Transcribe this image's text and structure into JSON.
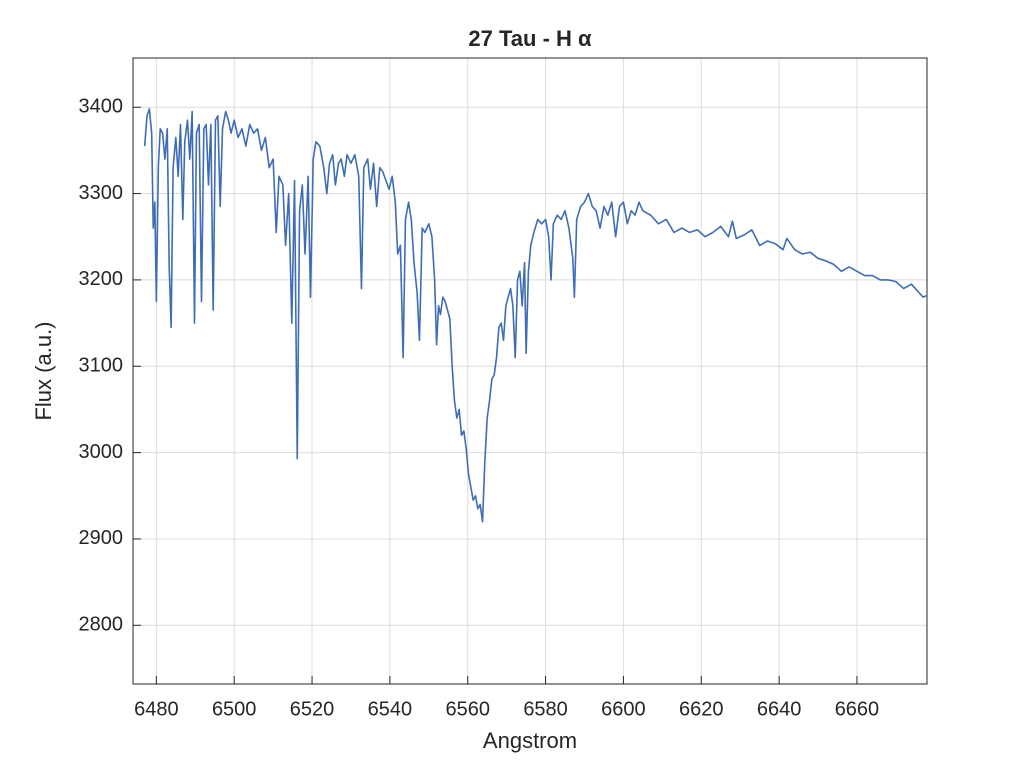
{
  "chart_data": {
    "type": "line",
    "title": "27 Tau - H α",
    "xlabel": "Angstrom",
    "ylabel": "Flux (a.u.)",
    "x": [
      6477.0,
      6477.6,
      6478.2,
      6478.8,
      6479.2,
      6479.6,
      6480.0,
      6480.5,
      6481.0,
      6481.6,
      6482.2,
      6482.8,
      6483.3,
      6483.8,
      6484.3,
      6485.0,
      6485.6,
      6486.2,
      6486.8,
      6487.3,
      6488.0,
      6488.6,
      6489.2,
      6489.8,
      6490.3,
      6491.0,
      6491.6,
      6492.2,
      6492.8,
      6493.4,
      6494.0,
      6494.6,
      6495.2,
      6495.8,
      6496.4,
      6497.0,
      6497.8,
      6498.5,
      6499.2,
      6500.0,
      6501.0,
      6502.0,
      6503.0,
      6504.0,
      6505.0,
      6506.0,
      6507.0,
      6508.0,
      6509.0,
      6510.0,
      6510.8,
      6511.5,
      6512.5,
      6513.2,
      6514.0,
      6514.8,
      6515.5,
      6516.2,
      6516.8,
      6517.5,
      6518.2,
      6519.0,
      6519.6,
      6520.3,
      6521.0,
      6522.0,
      6523.0,
      6523.8,
      6524.5,
      6525.3,
      6526.0,
      6526.8,
      6527.5,
      6528.3,
      6529.0,
      6530.0,
      6531.0,
      6532.0,
      6532.7,
      6533.3,
      6534.3,
      6535.0,
      6535.8,
      6536.6,
      6537.4,
      6538.2,
      6539.0,
      6539.8,
      6540.6,
      6541.4,
      6542.0,
      6542.7,
      6543.4,
      6544.0,
      6544.8,
      6545.5,
      6546.2,
      6547.0,
      6547.6,
      6548.3,
      6549.0,
      6550.0,
      6550.8,
      6551.5,
      6552.0,
      6552.5,
      6553.0,
      6553.6,
      6554.2,
      6554.8,
      6555.4,
      6556.0,
      6556.6,
      6557.2,
      6557.8,
      6558.4,
      6559.0,
      6559.6,
      6560.2,
      6560.8,
      6561.4,
      6562.0,
      6562.6,
      6563.2,
      6563.8,
      6564.4,
      6565.0,
      6565.6,
      6566.2,
      6566.8,
      6567.4,
      6568.0,
      6568.6,
      6569.2,
      6569.8,
      6570.4,
      6571.0,
      6571.6,
      6572.2,
      6572.8,
      6573.4,
      6574.0,
      6574.6,
      6575.0,
      6575.6,
      6576.2,
      6577.0,
      6578.0,
      6579.0,
      6580.0,
      6580.8,
      6581.4,
      6582.0,
      6583.0,
      6584.0,
      6585.0,
      6586.0,
      6587.0,
      6587.4,
      6588.0,
      6589.0,
      6590.0,
      6591.0,
      6592.0,
      6593.0,
      6594.0,
      6595.0,
      6596.0,
      6597.0,
      6598.0,
      6599.0,
      6600.0,
      6601.0,
      6602.0,
      6603.0,
      6604.0,
      6605.0,
      6607,
      6609,
      6611,
      6613,
      6615,
      6617,
      6619,
      6621,
      6623,
      6625,
      6627,
      6628,
      6629,
      6631,
      6633,
      6635,
      6637,
      6639,
      6641,
      6642,
      6644,
      6646,
      6648,
      6650,
      6652,
      6654,
      6656,
      6658,
      6660,
      6662,
      6664,
      6666,
      6668,
      6670,
      6672,
      6674,
      6676,
      6677,
      6678
    ],
    "values": [
      3355,
      3390,
      3398,
      3370,
      3260,
      3290,
      3175,
      3330,
      3375,
      3370,
      3340,
      3375,
      3215,
      3145,
      3330,
      3365,
      3320,
      3380,
      3270,
      3360,
      3385,
      3340,
      3395,
      3150,
      3370,
      3380,
      3175,
      3375,
      3380,
      3310,
      3380,
      3165,
      3385,
      3390,
      3285,
      3375,
      3395,
      3385,
      3370,
      3385,
      3365,
      3375,
      3355,
      3380,
      3370,
      3375,
      3350,
      3365,
      3330,
      3340,
      3255,
      3320,
      3310,
      3240,
      3300,
      3150,
      3315,
      2993,
      3280,
      3310,
      3230,
      3320,
      3180,
      3340,
      3360,
      3355,
      3330,
      3300,
      3335,
      3345,
      3310,
      3335,
      3340,
      3320,
      3345,
      3335,
      3345,
      3320,
      3190,
      3330,
      3340,
      3305,
      3335,
      3285,
      3330,
      3325,
      3315,
      3305,
      3320,
      3290,
      3230,
      3240,
      3110,
      3270,
      3290,
      3270,
      3220,
      3185,
      3130,
      3260,
      3255,
      3265,
      3250,
      3200,
      3125,
      3170,
      3160,
      3180,
      3175,
      3165,
      3155,
      3100,
      3060,
      3040,
      3050,
      3020,
      3025,
      3005,
      2975,
      2960,
      2945,
      2950,
      2935,
      2940,
      2920,
      2990,
      3040,
      3060,
      3085,
      3090,
      3110,
      3145,
      3150,
      3130,
      3170,
      3180,
      3190,
      3170,
      3110,
      3200,
      3210,
      3170,
      3220,
      3115,
      3210,
      3240,
      3255,
      3270,
      3265,
      3270,
      3250,
      3200,
      3265,
      3275,
      3270,
      3280,
      3260,
      3225,
      3180,
      3270,
      3285,
      3290,
      3300,
      3285,
      3280,
      3260,
      3285,
      3275,
      3290,
      3250,
      3285,
      3290,
      3265,
      3280,
      3275,
      3290,
      3280,
      3275,
      3265,
      3270,
      3255,
      3260,
      3255,
      3258,
      3250,
      3255,
      3262,
      3250,
      3268,
      3248,
      3252,
      3258,
      3240,
      3245,
      3242,
      3235,
      3248,
      3235,
      3230,
      3232,
      3225,
      3222,
      3218,
      3210,
      3215,
      3210,
      3205,
      3205,
      3200,
      3200,
      3198,
      3190,
      3195,
      3185,
      3180,
      3182
    ],
    "color": "#3e6db5",
    "xlim": [
      6474,
      6678
    ],
    "ylim": [
      2732,
      3457
    ],
    "xticks": [
      6480,
      6500,
      6520,
      6540,
      6560,
      6580,
      6600,
      6620,
      6640,
      6660
    ],
    "yticks": [
      2800,
      2900,
      3000,
      3100,
      3200,
      3300,
      3400
    ],
    "grid": true
  }
}
